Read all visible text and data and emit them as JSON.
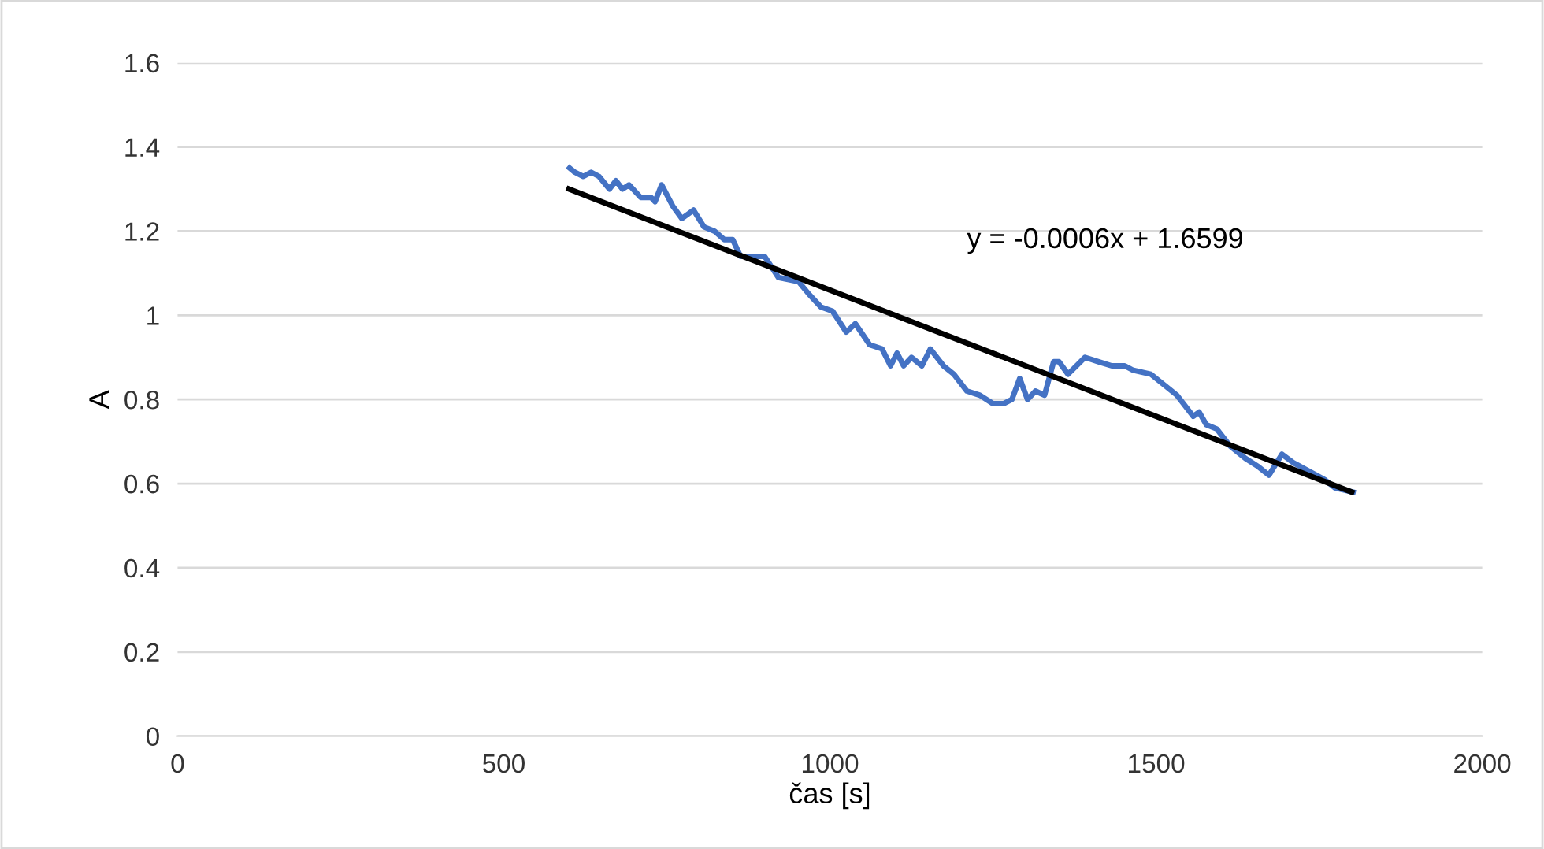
{
  "chart_data": {
    "type": "line",
    "xlabel": "čas [s]",
    "ylabel": "A",
    "xlim": [
      0,
      2000
    ],
    "xticks": [
      0,
      500,
      1000,
      1500,
      2000
    ],
    "ylim": [
      0,
      1.6
    ],
    "yticks": [
      0,
      0.2,
      0.4,
      0.6,
      0.8,
      1,
      1.2,
      1.4,
      1.6
    ],
    "grid": "y",
    "legend": false,
    "marker": "none",
    "line_style": "solid",
    "annotations": [
      "y = -0.0006x + 1.6599"
    ],
    "series": [
      {
        "color": "#4472c4",
        "x": [
          601,
          609,
          622,
          634,
          646,
          662,
          672,
          682,
          692,
          710,
          726,
          732,
          742,
          759,
          773,
          791,
          807,
          823,
          838,
          851,
          863,
          900,
          921,
          952,
          968,
          986,
          1004,
          1025,
          1039,
          1061,
          1080,
          1093,
          1103,
          1113,
          1125,
          1141,
          1154,
          1174,
          1190,
          1210,
          1230,
          1250,
          1266,
          1279,
          1291,
          1303,
          1315,
          1329,
          1343,
          1351,
          1365,
          1391,
          1411,
          1432,
          1452,
          1464,
          1492,
          1516,
          1532,
          1557,
          1566,
          1577,
          1593,
          1613,
          1637,
          1657,
          1673,
          1693,
          1710,
          1734,
          1758,
          1774,
          1802
        ],
        "values": [
          1.35,
          1.34,
          1.33,
          1.34,
          1.33,
          1.3,
          1.32,
          1.3,
          1.31,
          1.28,
          1.28,
          1.27,
          1.31,
          1.26,
          1.23,
          1.25,
          1.21,
          1.2,
          1.18,
          1.18,
          1.14,
          1.14,
          1.09,
          1.08,
          1.05,
          1.02,
          1.01,
          0.96,
          0.98,
          0.93,
          0.92,
          0.88,
          0.91,
          0.88,
          0.9,
          0.88,
          0.92,
          0.88,
          0.86,
          0.82,
          0.81,
          0.79,
          0.79,
          0.8,
          0.85,
          0.8,
          0.82,
          0.81,
          0.89,
          0.89,
          0.86,
          0.9,
          0.89,
          0.88,
          0.88,
          0.87,
          0.86,
          0.83,
          0.81,
          0.76,
          0.77,
          0.74,
          0.73,
          0.69,
          0.66,
          0.64,
          0.62,
          0.67,
          0.65,
          0.63,
          0.61,
          0.59,
          0.58
        ]
      },
      {
        "color": "#000000",
        "x": [
          600,
          1800
        ],
        "values": [
          1.2999,
          0.5799
        ]
      }
    ]
  }
}
